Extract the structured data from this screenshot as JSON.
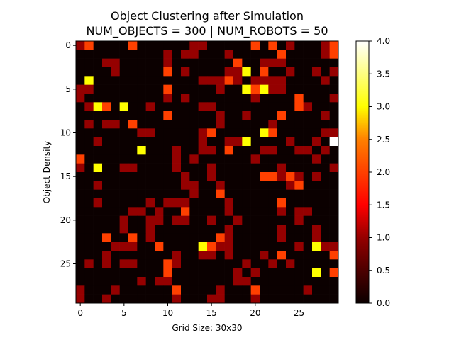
{
  "chart_data": {
    "type": "heatmap",
    "title": "Object Clustering after Simulation",
    "subtitle": "NUM_OBJECTS = 300 | NUM_ROBOTS = 50",
    "xlabel": "Grid Size: 30x30",
    "ylabel": "Object Density",
    "colormap": "hot",
    "grid": false,
    "x_ticks": [
      "0",
      "5",
      "10",
      "15",
      "20",
      "25"
    ],
    "y_ticks": [
      "0",
      "5",
      "10",
      "15",
      "20",
      "25"
    ],
    "colorbar": {
      "vmin": 0.0,
      "vmax": 4.0,
      "ticks": [
        "0.0",
        "0.5",
        "1.0",
        "1.5",
        "2.0",
        "2.5",
        "3.0",
        "3.5",
        "4.0"
      ]
    },
    "rows": 30,
    "cols": 30,
    "values": [
      [
        1,
        2,
        0,
        0,
        0,
        0,
        2,
        0,
        0,
        0,
        0,
        0,
        0,
        1,
        1,
        0,
        0,
        0,
        0,
        0,
        2,
        0,
        2,
        0,
        1,
        0,
        0,
        0,
        1,
        2
      ],
      [
        0,
        0,
        0,
        0,
        0,
        0,
        0,
        0,
        0,
        0,
        1,
        0,
        1,
        1,
        0,
        0,
        0,
        1,
        0,
        0,
        0,
        0,
        0,
        2,
        0,
        0,
        0,
        0,
        1,
        2
      ],
      [
        0,
        0,
        0,
        1,
        1,
        0,
        0,
        0,
        0,
        0,
        1,
        0,
        0,
        0,
        0,
        0,
        0,
        0,
        2,
        0,
        0,
        1,
        1,
        1,
        0,
        0,
        0,
        0,
        0,
        0
      ],
      [
        0,
        0,
        0,
        0,
        1,
        0,
        0,
        0,
        0,
        0,
        2,
        0,
        1,
        0,
        0,
        0,
        0,
        1,
        1,
        3,
        0,
        2,
        0,
        0,
        1,
        0,
        0,
        1,
        0,
        1
      ],
      [
        0,
        3,
        0,
        0,
        0,
        0,
        0,
        0,
        0,
        0,
        0,
        0,
        0,
        0,
        1,
        1,
        1,
        2,
        1,
        0,
        1,
        1,
        1,
        1,
        0,
        0,
        0,
        0,
        1,
        0
      ],
      [
        1,
        1,
        0,
        0,
        0,
        0,
        0,
        0,
        0,
        0,
        2,
        0,
        0,
        0,
        0,
        0,
        1,
        0,
        0,
        3,
        2,
        3,
        1,
        1,
        0,
        0,
        0,
        0,
        0,
        0
      ],
      [
        1,
        0,
        0,
        0,
        0,
        0,
        0,
        0,
        0,
        0,
        1,
        0,
        1,
        0,
        0,
        0,
        0,
        0,
        0,
        0,
        1,
        0,
        0,
        0,
        0,
        2,
        0,
        0,
        0,
        1
      ],
      [
        0,
        1,
        3,
        2,
        0,
        3,
        0,
        0,
        1,
        0,
        0,
        0,
        0,
        0,
        1,
        1,
        0,
        0,
        0,
        0,
        0,
        0,
        0,
        0,
        0,
        2,
        1,
        0,
        0,
        0
      ],
      [
        0,
        0,
        0,
        0,
        0,
        0,
        0,
        0,
        0,
        0,
        2,
        0,
        0,
        0,
        0,
        0,
        1,
        0,
        0,
        1,
        0,
        0,
        0,
        2,
        0,
        0,
        0,
        0,
        1,
        0
      ],
      [
        0,
        1,
        0,
        1,
        1,
        0,
        2,
        0,
        0,
        0,
        0,
        0,
        0,
        0,
        0,
        0,
        1,
        0,
        0,
        0,
        0,
        0,
        1,
        0,
        0,
        0,
        0,
        0,
        0,
        0
      ],
      [
        0,
        0,
        0,
        0,
        0,
        0,
        0,
        1,
        1,
        0,
        0,
        0,
        0,
        0,
        1,
        2,
        0,
        0,
        0,
        0,
        0,
        3,
        2,
        0,
        0,
        0,
        0,
        0,
        1,
        1
      ],
      [
        0,
        0,
        1,
        0,
        0,
        0,
        0,
        0,
        0,
        0,
        0,
        0,
        0,
        0,
        1,
        0,
        0,
        1,
        1,
        3,
        0,
        0,
        0,
        0,
        1,
        0,
        0,
        1,
        0,
        4
      ],
      [
        0,
        0,
        0,
        0,
        0,
        0,
        0,
        3,
        0,
        0,
        0,
        1,
        0,
        0,
        1,
        1,
        0,
        2,
        0,
        0,
        0,
        1,
        1,
        0,
        0,
        1,
        1,
        0,
        1,
        0
      ],
      [
        2,
        0,
        0,
        0,
        0,
        0,
        0,
        0,
        0,
        0,
        0,
        1,
        0,
        1,
        0,
        0,
        0,
        0,
        0,
        0,
        1,
        0,
        0,
        0,
        0,
        0,
        0,
        1,
        0,
        0
      ],
      [
        1,
        0,
        3,
        0,
        0,
        1,
        1,
        0,
        0,
        0,
        0,
        1,
        0,
        0,
        0,
        1,
        0,
        0,
        0,
        0,
        0,
        0,
        0,
        1,
        0,
        0,
        0,
        0,
        0,
        1
      ],
      [
        0,
        0,
        0,
        0,
        0,
        0,
        0,
        0,
        0,
        0,
        0,
        0,
        1,
        0,
        0,
        1,
        0,
        0,
        0,
        0,
        0,
        2,
        2,
        1,
        2,
        1,
        0,
        1,
        0,
        0
      ],
      [
        0,
        0,
        1,
        0,
        0,
        0,
        0,
        0,
        0,
        0,
        0,
        0,
        1,
        1,
        0,
        0,
        1,
        0,
        0,
        0,
        0,
        0,
        0,
        0,
        1,
        2,
        0,
        0,
        0,
        0
      ],
      [
        0,
        0,
        0,
        0,
        0,
        0,
        0,
        0,
        0,
        0,
        0,
        0,
        0,
        1,
        0,
        0,
        2,
        0,
        0,
        0,
        0,
        0,
        0,
        0,
        0,
        0,
        0,
        0,
        0,
        0
      ],
      [
        0,
        0,
        1,
        0,
        0,
        0,
        0,
        0,
        1,
        0,
        1,
        1,
        1,
        0,
        0,
        0,
        0,
        1,
        0,
        0,
        0,
        0,
        0,
        2,
        0,
        0,
        0,
        0,
        0,
        0
      ],
      [
        0,
        0,
        0,
        0,
        0,
        0,
        1,
        1,
        0,
        1,
        0,
        0,
        2,
        0,
        0,
        0,
        0,
        1,
        0,
        0,
        0,
        0,
        0,
        1,
        0,
        1,
        1,
        0,
        0,
        0
      ],
      [
        0,
        0,
        0,
        0,
        0,
        1,
        0,
        0,
        1,
        1,
        0,
        1,
        1,
        0,
        0,
        1,
        0,
        0,
        1,
        0,
        0,
        0,
        0,
        0,
        0,
        1,
        0,
        0,
        0,
        0
      ],
      [
        0,
        0,
        0,
        0,
        0,
        1,
        0,
        0,
        1,
        0,
        0,
        0,
        0,
        0,
        0,
        0,
        0,
        1,
        0,
        0,
        0,
        0,
        0,
        1,
        0,
        0,
        0,
        1,
        0,
        0
      ],
      [
        0,
        0,
        0,
        2,
        0,
        0,
        2,
        0,
        1,
        0,
        0,
        0,
        0,
        0,
        0,
        0,
        2,
        1,
        0,
        0,
        0,
        0,
        0,
        1,
        0,
        0,
        0,
        1,
        0,
        0
      ],
      [
        0,
        0,
        0,
        0,
        1,
        1,
        1,
        0,
        0,
        2,
        0,
        0,
        0,
        0,
        3,
        2,
        1,
        1,
        0,
        0,
        0,
        0,
        0,
        0,
        0,
        1,
        0,
        3,
        1,
        1
      ],
      [
        0,
        0,
        0,
        1,
        0,
        0,
        0,
        0,
        0,
        0,
        0,
        1,
        0,
        0,
        1,
        1,
        0,
        1,
        0,
        0,
        0,
        1,
        0,
        2,
        0,
        0,
        0,
        0,
        0,
        2
      ],
      [
        0,
        1,
        0,
        1,
        0,
        1,
        1,
        0,
        0,
        0,
        2,
        1,
        0,
        0,
        0,
        0,
        0,
        0,
        0,
        1,
        0,
        0,
        1,
        0,
        1,
        0,
        0,
        0,
        0,
        0
      ],
      [
        0,
        0,
        0,
        0,
        0,
        0,
        0,
        0,
        0,
        0,
        2,
        0,
        0,
        0,
        0,
        0,
        0,
        0,
        1,
        0,
        1,
        0,
        0,
        0,
        0,
        0,
        0,
        3,
        0,
        2
      ],
      [
        0,
        0,
        0,
        0,
        0,
        0,
        0,
        1,
        0,
        1,
        1,
        0,
        0,
        0,
        0,
        0,
        0,
        0,
        1,
        1,
        0,
        0,
        0,
        0,
        0,
        0,
        0,
        0,
        0,
        0
      ],
      [
        1,
        0,
        0,
        0,
        1,
        0,
        0,
        0,
        0,
        0,
        0,
        2,
        0,
        0,
        0,
        0,
        1,
        0,
        0,
        0,
        2,
        0,
        0,
        0,
        0,
        0,
        1,
        0,
        0,
        0
      ],
      [
        1,
        0,
        0,
        1,
        0,
        0,
        0,
        0,
        0,
        0,
        0,
        1,
        0,
        0,
        0,
        1,
        1,
        0,
        0,
        0,
        1,
        0,
        0,
        0,
        0,
        0,
        0,
        0,
        0,
        0
      ]
    ]
  }
}
